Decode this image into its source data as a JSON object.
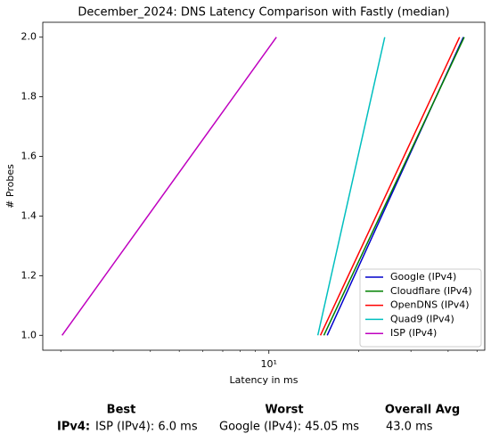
{
  "chart_data": {
    "type": "line",
    "title": "December_2024: DNS Latency Comparison with Fastly (median)",
    "xlabel": "Latency in ms",
    "ylabel": "# Probes",
    "xscale": "log",
    "xlim": [
      1.74,
      53.1
    ],
    "ylim": [
      0.95,
      2.05
    ],
    "xticks": [
      {
        "value": 10,
        "label": "10¹"
      }
    ],
    "yticks": [
      {
        "value": 1.0,
        "label": "1.0"
      },
      {
        "value": 1.2,
        "label": "1.2"
      },
      {
        "value": 1.4,
        "label": "1.4"
      },
      {
        "value": 1.6,
        "label": "1.6"
      },
      {
        "value": 1.8,
        "label": "1.8"
      },
      {
        "value": 2.0,
        "label": "2.0"
      }
    ],
    "legend": "lower right",
    "series": [
      {
        "name": "Google (IPv4)",
        "color": "#0000cc",
        "x": [
          15.7,
          45.0
        ],
        "values": [
          1,
          2
        ]
      },
      {
        "name": "Cloudflare (IPv4)",
        "color": "#008000",
        "x": [
          15.3,
          45.3
        ],
        "values": [
          1,
          2
        ]
      },
      {
        "name": "OpenDNS (IPv4)",
        "color": "#ff0000",
        "x": [
          14.9,
          43.7
        ],
        "values": [
          1,
          2
        ]
      },
      {
        "name": "Quad9 (IPv4)",
        "color": "#00bfbf",
        "x": [
          14.6,
          24.5
        ],
        "values": [
          1,
          2
        ]
      },
      {
        "name": "ISP (IPv4)",
        "color": "#bf00bf",
        "x": [
          2.02,
          10.6
        ],
        "values": [
          1,
          2
        ]
      }
    ]
  },
  "summary": {
    "headers": [
      "Best",
      "Worst",
      "Overall Avg"
    ],
    "rows": [
      [
        "IPv4:",
        "ISP (IPv4): 6.0 ms",
        "Google (IPv4): 45.05 ms",
        "43.0 ms"
      ]
    ]
  }
}
